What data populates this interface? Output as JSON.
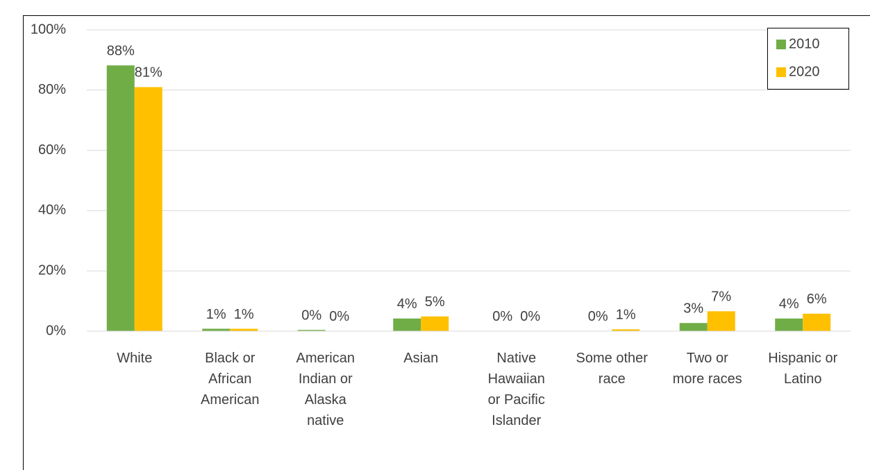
{
  "chart_data": {
    "type": "bar",
    "categories": [
      "White",
      "Black or\nAfrican\nAmerican",
      "American\nIndian or\nAlaska\nnative",
      "Asian",
      "Native\nHawaiian\nor Pacific\nIslander",
      "Some other\nrace",
      "Two or\nmore races",
      "Hispanic or\nLatino"
    ],
    "series": [
      {
        "name": "2010",
        "color": "#70ad47",
        "values": [
          88.2,
          0.8,
          0.4,
          4.2,
          0.1,
          0.1,
          2.7,
          4.2
        ],
        "value_labels": [
          "88%",
          "1%",
          "0%",
          "4%",
          "0%",
          "0%",
          "3%",
          "4%"
        ]
      },
      {
        "name": "2020",
        "color": "#ffc000",
        "values": [
          81.0,
          0.8,
          0.1,
          4.9,
          0.1,
          0.6,
          6.6,
          5.8
        ],
        "value_labels": [
          "81%",
          "1%",
          "0%",
          "5%",
          "0%",
          "1%",
          "7%",
          "6%"
        ]
      }
    ],
    "ylim": [
      0,
      100
    ],
    "yticks": [
      {
        "value": 0,
        "label": "0%"
      },
      {
        "value": 20,
        "label": "20%"
      },
      {
        "value": 40,
        "label": "40%"
      },
      {
        "value": 60,
        "label": "60%"
      },
      {
        "value": 80,
        "label": "80%"
      },
      {
        "value": 100,
        "label": "100%"
      }
    ],
    "grid": true,
    "legend": "top-right"
  }
}
